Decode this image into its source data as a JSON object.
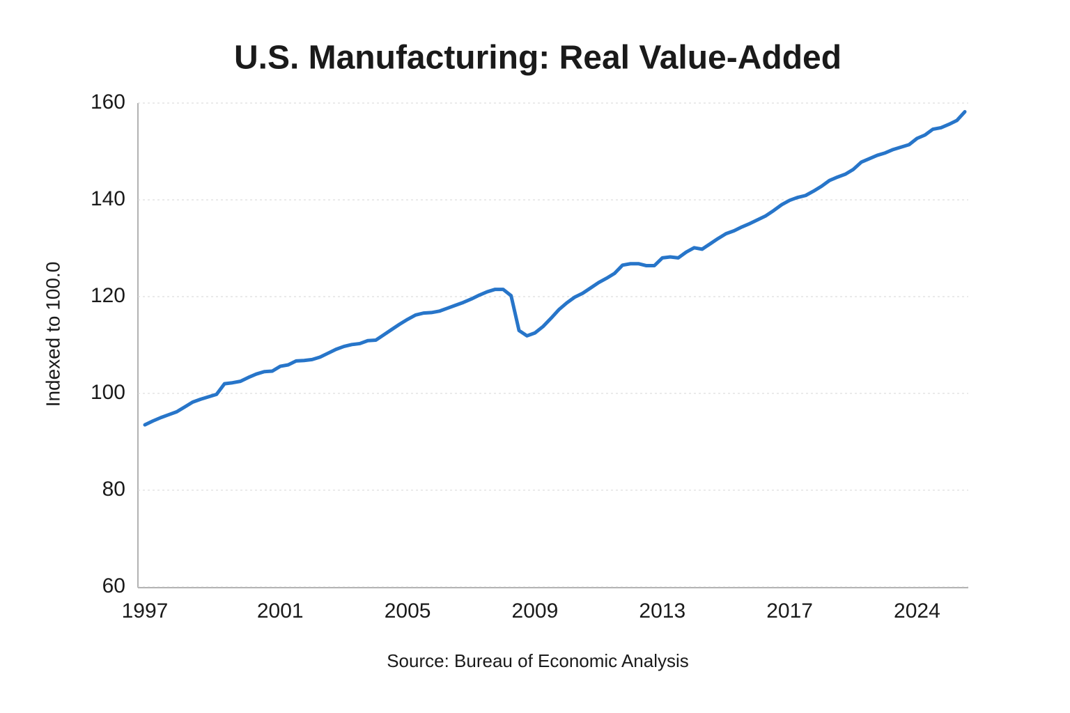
{
  "chart_data": {
    "type": "line",
    "title": "U.S. Manufacturing: Real Value-Added",
    "y_label": "Indexed to 100.0",
    "source": "Source: Bureau of Economic Analysis",
    "categories": [
      "1997",
      null,
      null,
      null,
      null,
      null,
      null,
      null,
      null,
      null,
      null,
      null,
      null,
      null,
      null,
      null,
      null,
      "2001",
      null,
      null,
      null,
      null,
      null,
      null,
      null,
      null,
      null,
      null,
      null,
      null,
      null,
      null,
      null,
      "2005",
      null,
      null,
      null,
      null,
      null,
      null,
      null,
      null,
      null,
      null,
      null,
      null,
      null,
      null,
      null,
      "2009",
      null,
      null,
      null,
      null,
      null,
      null,
      null,
      null,
      null,
      null,
      null,
      null,
      null,
      null,
      null,
      "2013",
      null,
      null,
      null,
      null,
      null,
      null,
      null,
      null,
      null,
      null,
      null,
      null,
      null,
      null,
      null,
      "2017",
      null,
      null,
      null,
      null,
      null,
      null,
      null,
      null,
      null,
      null,
      null,
      null,
      null,
      null,
      null,
      "2024",
      null,
      null,
      null,
      null,
      null,
      null
    ],
    "series": [
      {
        "color": "#2775c9",
        "values": [
          93.5,
          94.3,
          95.0,
          95.6,
          96.2,
          97.2,
          98.2,
          98.8,
          99.3,
          99.8,
          102.0,
          102.2,
          102.5,
          103.3,
          104.0,
          104.5,
          104.6,
          105.6,
          105.9,
          106.7,
          106.8,
          107.0,
          107.5,
          108.3,
          109.1,
          109.7,
          110.1,
          110.3,
          110.9,
          111.0,
          112.1,
          113.2,
          114.3,
          115.3,
          116.2,
          116.6,
          116.7,
          117.0,
          117.6,
          118.2,
          118.8,
          119.5,
          120.3,
          121.0,
          121.5,
          121.5,
          120.2,
          113.0,
          111.9,
          112.5,
          113.8,
          115.5,
          117.3,
          118.7,
          119.9,
          120.7,
          121.8,
          122.9,
          123.8,
          124.8,
          126.5,
          126.8,
          126.8,
          126.4,
          126.4,
          128.0,
          128.2,
          128.0,
          129.2,
          130.1,
          129.8,
          130.9,
          132.0,
          133.0,
          133.6,
          134.4,
          135.1,
          135.9,
          136.7,
          137.8,
          139.0,
          139.9,
          140.5,
          140.9,
          141.8,
          142.8,
          144.0,
          144.7,
          145.3,
          146.3,
          147.8,
          148.5,
          149.2,
          149.7,
          150.4,
          150.9,
          151.4,
          152.7,
          153.4,
          154.6,
          154.9,
          155.6,
          156.4,
          158.2
        ]
      }
    ],
    "ylim": [
      60,
      160
    ],
    "yticks": [
      60,
      80,
      100,
      120,
      140,
      160
    ],
    "grid": true
  }
}
